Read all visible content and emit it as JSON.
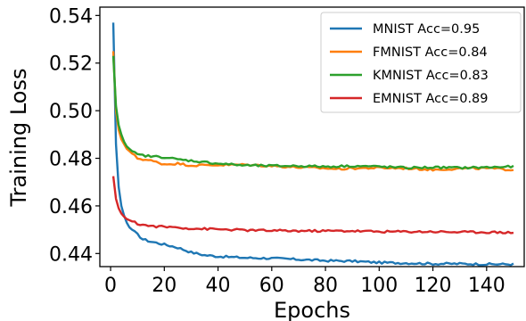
{
  "chart_data": {
    "type": "line",
    "title": "",
    "xlabel": "Epochs",
    "ylabel": "Training Loss",
    "xlim": [
      -4,
      154
    ],
    "ylim": [
      0.4345,
      0.5435
    ],
    "xticks": [
      0,
      20,
      40,
      60,
      80,
      100,
      120,
      140
    ],
    "yticks": [
      0.44,
      0.46,
      0.48,
      0.5,
      0.52,
      0.54
    ],
    "ytick_labels": [
      "0.44",
      "0.46",
      "0.48",
      "0.50",
      "0.52",
      "0.54"
    ],
    "grid": false,
    "legend_position": "top-right",
    "series": [
      {
        "name": "MNIST Acc=0.95",
        "color": "#1f77b4",
        "points": [
          [
            1,
            0.537
          ],
          [
            2,
            0.486
          ],
          [
            3,
            0.468
          ],
          [
            4,
            0.46
          ],
          [
            5,
            0.456
          ],
          [
            6,
            0.453
          ],
          [
            7,
            0.451
          ],
          [
            8,
            0.45
          ],
          [
            10,
            0.448
          ],
          [
            12,
            0.446
          ],
          [
            15,
            0.445
          ],
          [
            20,
            0.4438
          ],
          [
            25,
            0.4425
          ],
          [
            30,
            0.4405
          ],
          [
            35,
            0.4393
          ],
          [
            40,
            0.4388
          ],
          [
            50,
            0.4382
          ],
          [
            60,
            0.438
          ],
          [
            70,
            0.4375
          ],
          [
            80,
            0.437
          ],
          [
            90,
            0.4368
          ],
          [
            100,
            0.4362
          ],
          [
            110,
            0.436
          ],
          [
            120,
            0.4357
          ],
          [
            130,
            0.4357
          ],
          [
            140,
            0.4355
          ],
          [
            150,
            0.4355
          ]
        ]
      },
      {
        "name": "FMNIST Acc=0.84",
        "color": "#ff7f0e",
        "points": [
          [
            1,
            0.525
          ],
          [
            2,
            0.5
          ],
          [
            3,
            0.492
          ],
          [
            4,
            0.488
          ],
          [
            5,
            0.486
          ],
          [
            6,
            0.484
          ],
          [
            8,
            0.482
          ],
          [
            10,
            0.48
          ],
          [
            15,
            0.479
          ],
          [
            20,
            0.4775
          ],
          [
            25,
            0.4778
          ],
          [
            30,
            0.477
          ],
          [
            40,
            0.4772
          ],
          [
            50,
            0.4773
          ],
          [
            60,
            0.4768
          ],
          [
            70,
            0.4762
          ],
          [
            80,
            0.4758
          ],
          [
            85,
            0.4755
          ],
          [
            90,
            0.4758
          ],
          [
            100,
            0.476
          ],
          [
            110,
            0.4758
          ],
          [
            120,
            0.4752
          ],
          [
            130,
            0.4757
          ],
          [
            140,
            0.4758
          ],
          [
            150,
            0.4752
          ]
        ]
      },
      {
        "name": "KMNIST Acc=0.83",
        "color": "#2ca02c",
        "points": [
          [
            1,
            0.523
          ],
          [
            2,
            0.502
          ],
          [
            3,
            0.494
          ],
          [
            4,
            0.49
          ],
          [
            5,
            0.487
          ],
          [
            6,
            0.485
          ],
          [
            8,
            0.483
          ],
          [
            10,
            0.4815
          ],
          [
            15,
            0.4808
          ],
          [
            20,
            0.4805
          ],
          [
            25,
            0.4795
          ],
          [
            30,
            0.479
          ],
          [
            40,
            0.4778
          ],
          [
            50,
            0.477
          ],
          [
            60,
            0.4768
          ],
          [
            70,
            0.4768
          ],
          [
            80,
            0.4765
          ],
          [
            90,
            0.4768
          ],
          [
            100,
            0.4765
          ],
          [
            110,
            0.476
          ],
          [
            120,
            0.4762
          ],
          [
            130,
            0.476
          ],
          [
            140,
            0.4762
          ],
          [
            150,
            0.4765
          ]
        ]
      },
      {
        "name": "EMNIST Acc=0.89",
        "color": "#d62728",
        "points": [
          [
            1,
            0.4725
          ],
          [
            2,
            0.463
          ],
          [
            3,
            0.459
          ],
          [
            4,
            0.4568
          ],
          [
            5,
            0.4555
          ],
          [
            6,
            0.4545
          ],
          [
            8,
            0.4535
          ],
          [
            10,
            0.4525
          ],
          [
            15,
            0.4515
          ],
          [
            20,
            0.4512
          ],
          [
            25,
            0.451
          ],
          [
            30,
            0.4505
          ],
          [
            40,
            0.4502
          ],
          [
            50,
            0.4498
          ],
          [
            60,
            0.4496
          ],
          [
            70,
            0.4495
          ],
          [
            80,
            0.4495
          ],
          [
            90,
            0.4495
          ],
          [
            100,
            0.4492
          ],
          [
            110,
            0.4492
          ],
          [
            120,
            0.4492
          ],
          [
            130,
            0.449
          ],
          [
            140,
            0.449
          ],
          [
            150,
            0.4488
          ]
        ]
      }
    ]
  }
}
